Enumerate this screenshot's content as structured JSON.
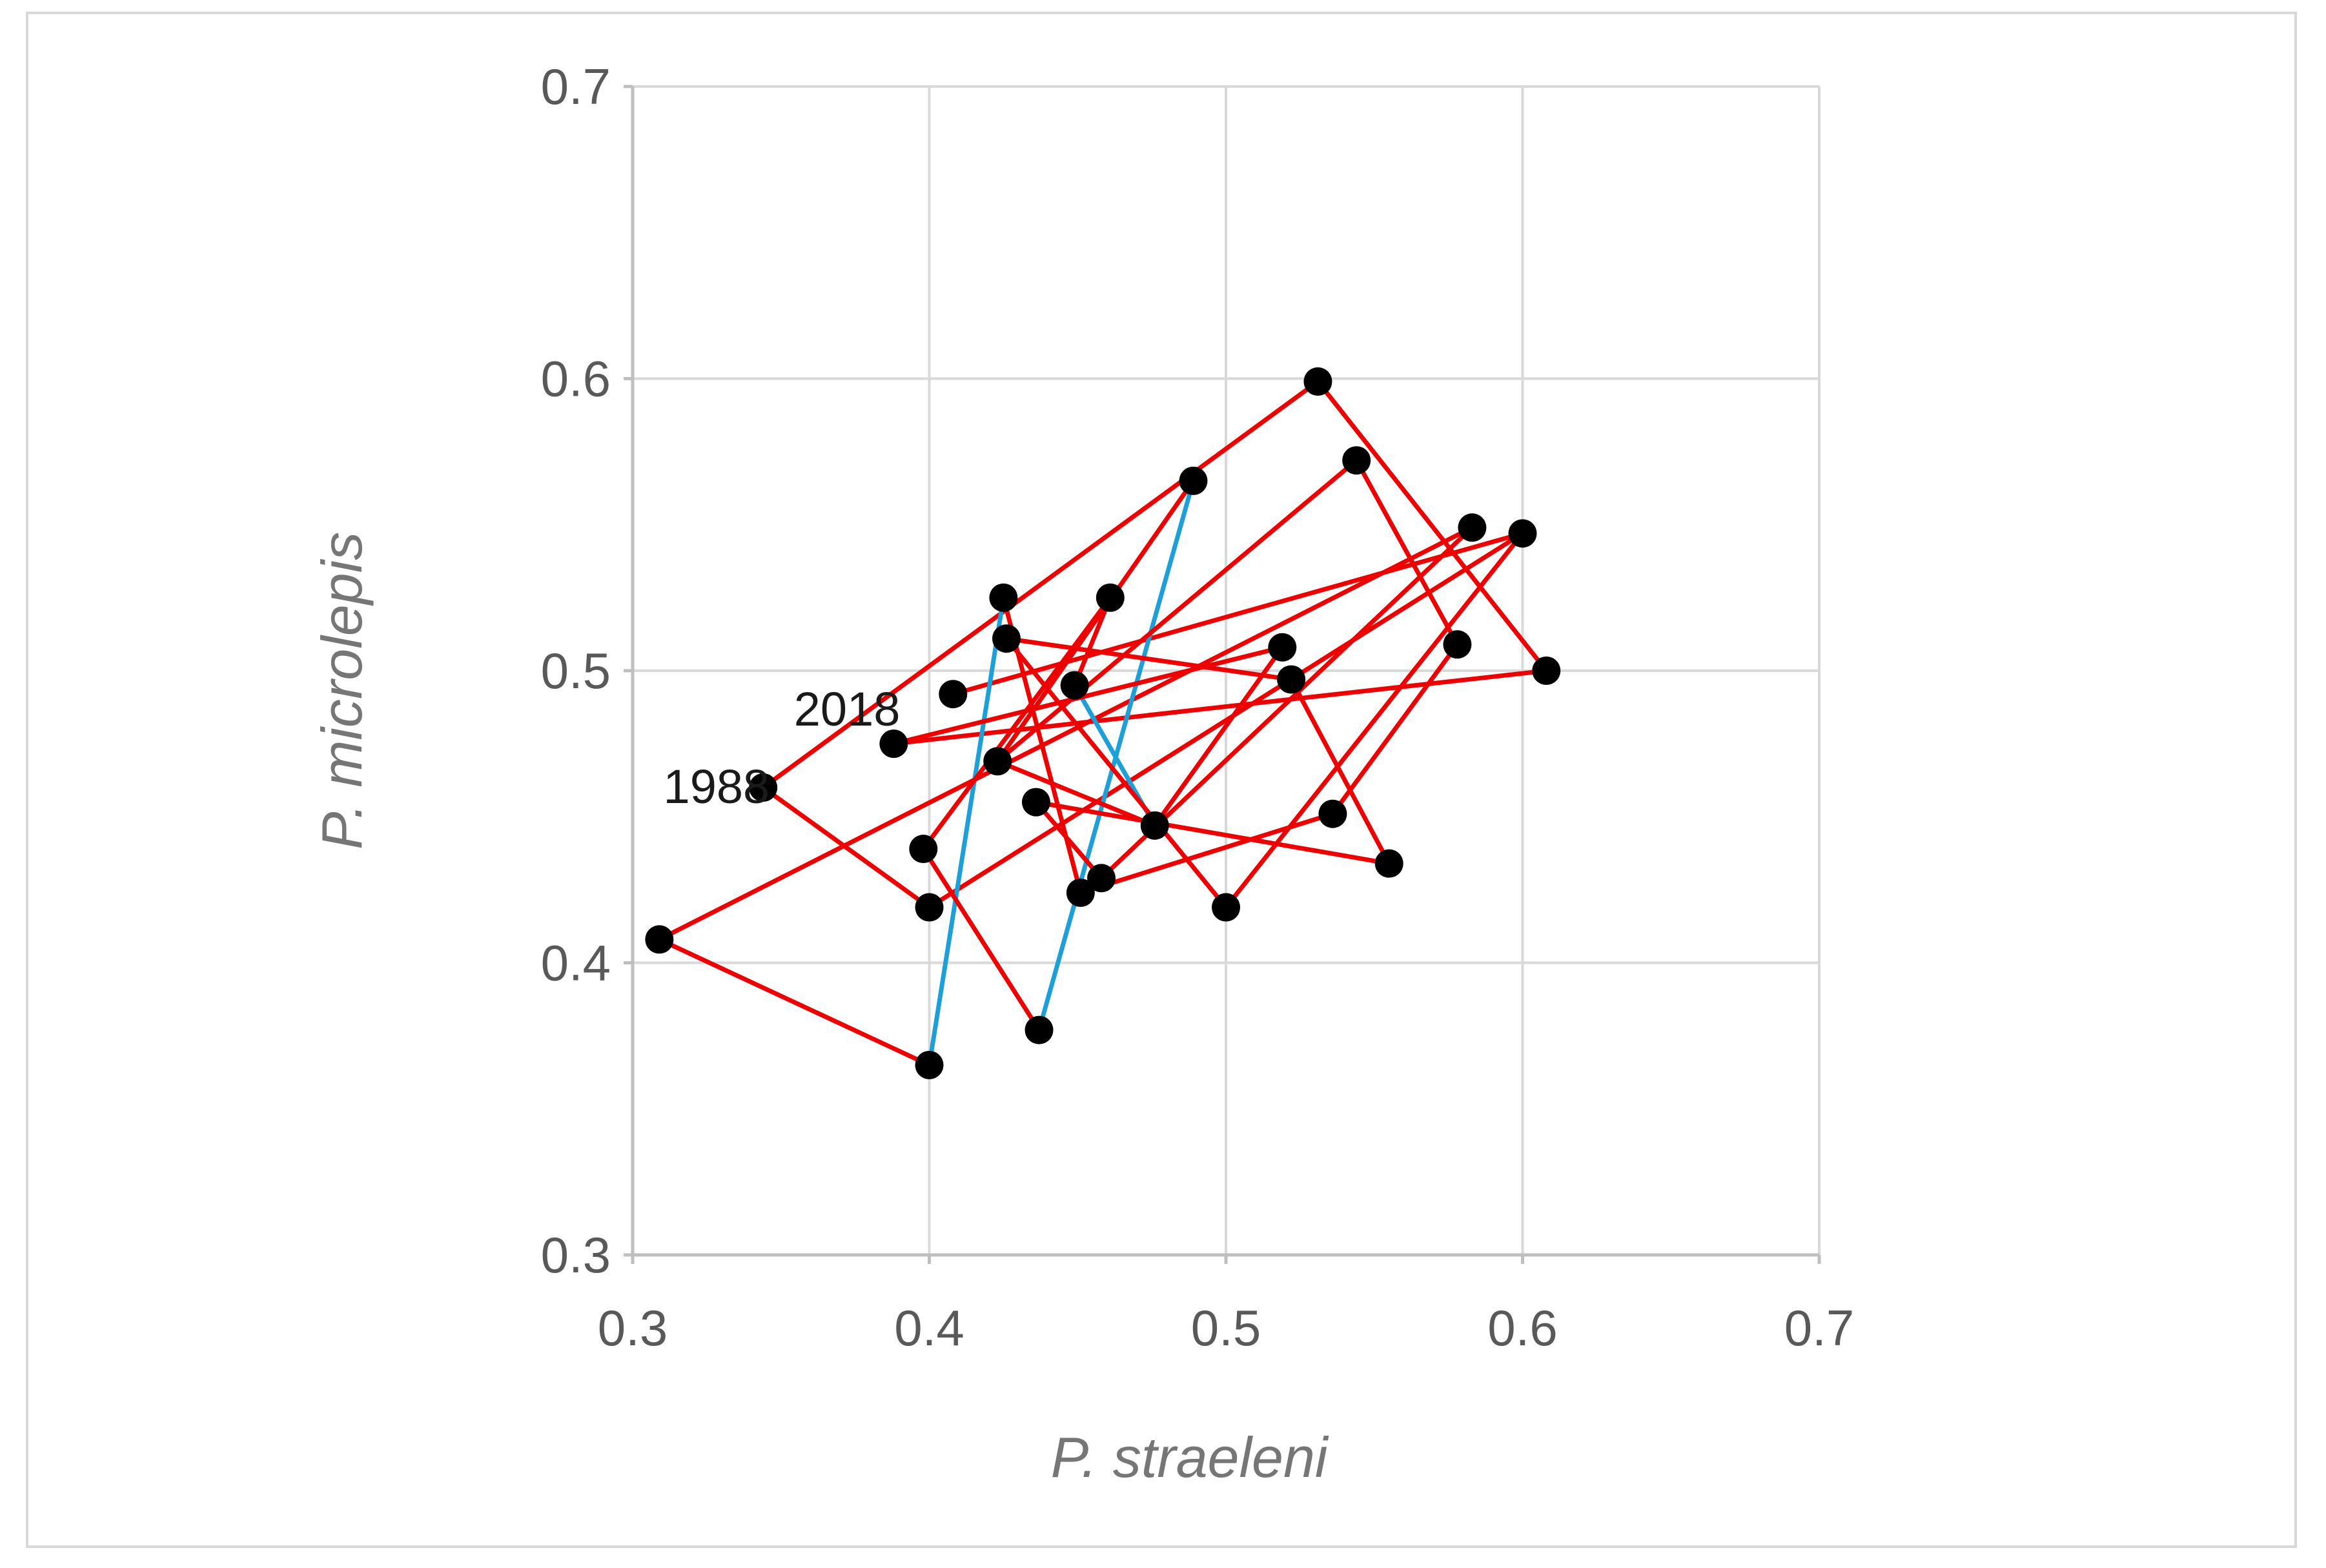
{
  "chart_data": {
    "type": "line",
    "xlabel": "P. straeleni",
    "ylabel": "P. microlepis",
    "xlim": [
      0.3,
      0.7
    ],
    "ylim": [
      0.3,
      0.7
    ],
    "x_ticks": [
      "0.3",
      "0.4",
      "0.5",
      "0.6",
      "0.7"
    ],
    "y_ticks": [
      "0.3",
      "0.4",
      "0.5",
      "0.6",
      "0.7"
    ],
    "grid": true,
    "legend": "none",
    "colors": {
      "segment_default": "#ee0000",
      "segment_highlight": "#1f9fd8",
      "point": "#000000"
    },
    "points": [
      [
        0.344,
        0.46
      ],
      [
        0.4,
        0.419
      ],
      [
        0.531,
        0.599
      ],
      [
        0.608,
        0.5
      ],
      [
        0.388,
        0.475
      ],
      [
        0.6,
        0.547
      ],
      [
        0.4,
        0.365
      ],
      [
        0.309,
        0.408
      ],
      [
        0.583,
        0.549
      ],
      [
        0.408,
        0.492
      ],
      [
        0.522,
        0.497
      ],
      [
        0.426,
        0.511
      ],
      [
        0.555,
        0.434
      ],
      [
        0.423,
        0.469
      ],
      [
        0.578,
        0.509
      ],
      [
        0.458,
        0.429
      ],
      [
        0.461,
        0.525
      ],
      [
        0.436,
        0.455
      ],
      [
        0.544,
        0.572
      ],
      [
        0.398,
        0.439
      ],
      [
        0.437,
        0.377
      ],
      [
        0.489,
        0.565
      ],
      [
        0.425,
        0.525
      ],
      [
        0.451,
        0.424
      ],
      [
        0.536,
        0.451
      ],
      [
        0.449,
        0.495
      ],
      [
        0.476,
        0.447
      ],
      [
        0.519,
        0.508
      ],
      [
        0.5,
        0.419
      ]
    ],
    "segments": [
      {
        "from": 0,
        "to": 1,
        "color": "red"
      },
      {
        "from": 2,
        "to": 0,
        "color": "red"
      },
      {
        "from": 2,
        "to": 3,
        "color": "red"
      },
      {
        "from": 4,
        "to": 3,
        "color": "red"
      },
      {
        "from": 1,
        "to": 5,
        "color": "red"
      },
      {
        "from": 6,
        "to": 7,
        "color": "red"
      },
      {
        "from": 7,
        "to": 8,
        "color": "red"
      },
      {
        "from": 9,
        "to": 5,
        "color": "red"
      },
      {
        "from": 6,
        "to": 22,
        "color": "blue"
      },
      {
        "from": 20,
        "to": 21,
        "color": "blue"
      },
      {
        "from": 25,
        "to": 26,
        "color": "blue"
      },
      {
        "from": 22,
        "to": 23,
        "color": "red"
      },
      {
        "from": 20,
        "to": 19,
        "color": "red"
      },
      {
        "from": 19,
        "to": 16,
        "color": "red"
      },
      {
        "from": 16,
        "to": 25,
        "color": "red"
      },
      {
        "from": 11,
        "to": 10,
        "color": "red"
      },
      {
        "from": 10,
        "to": 12,
        "color": "red"
      },
      {
        "from": 12,
        "to": 17,
        "color": "red"
      },
      {
        "from": 17,
        "to": 15,
        "color": "red"
      },
      {
        "from": 15,
        "to": 8,
        "color": "red"
      },
      {
        "from": 13,
        "to": 18,
        "color": "red"
      },
      {
        "from": 21,
        "to": 13,
        "color": "red"
      },
      {
        "from": 13,
        "to": 26,
        "color": "red"
      },
      {
        "from": 26,
        "to": 27,
        "color": "red"
      },
      {
        "from": 27,
        "to": 4,
        "color": "red"
      },
      {
        "from": 24,
        "to": 14,
        "color": "red"
      },
      {
        "from": 14,
        "to": 18,
        "color": "red"
      },
      {
        "from": 28,
        "to": 5,
        "color": "red"
      },
      {
        "from": 11,
        "to": 28,
        "color": "red"
      },
      {
        "from": 23,
        "to": 24,
        "color": "red"
      }
    ],
    "annotations": [
      {
        "text": "2018",
        "x": 0.388,
        "y": 0.475
      },
      {
        "text": "1988",
        "x": 0.344,
        "y": 0.46
      }
    ]
  }
}
